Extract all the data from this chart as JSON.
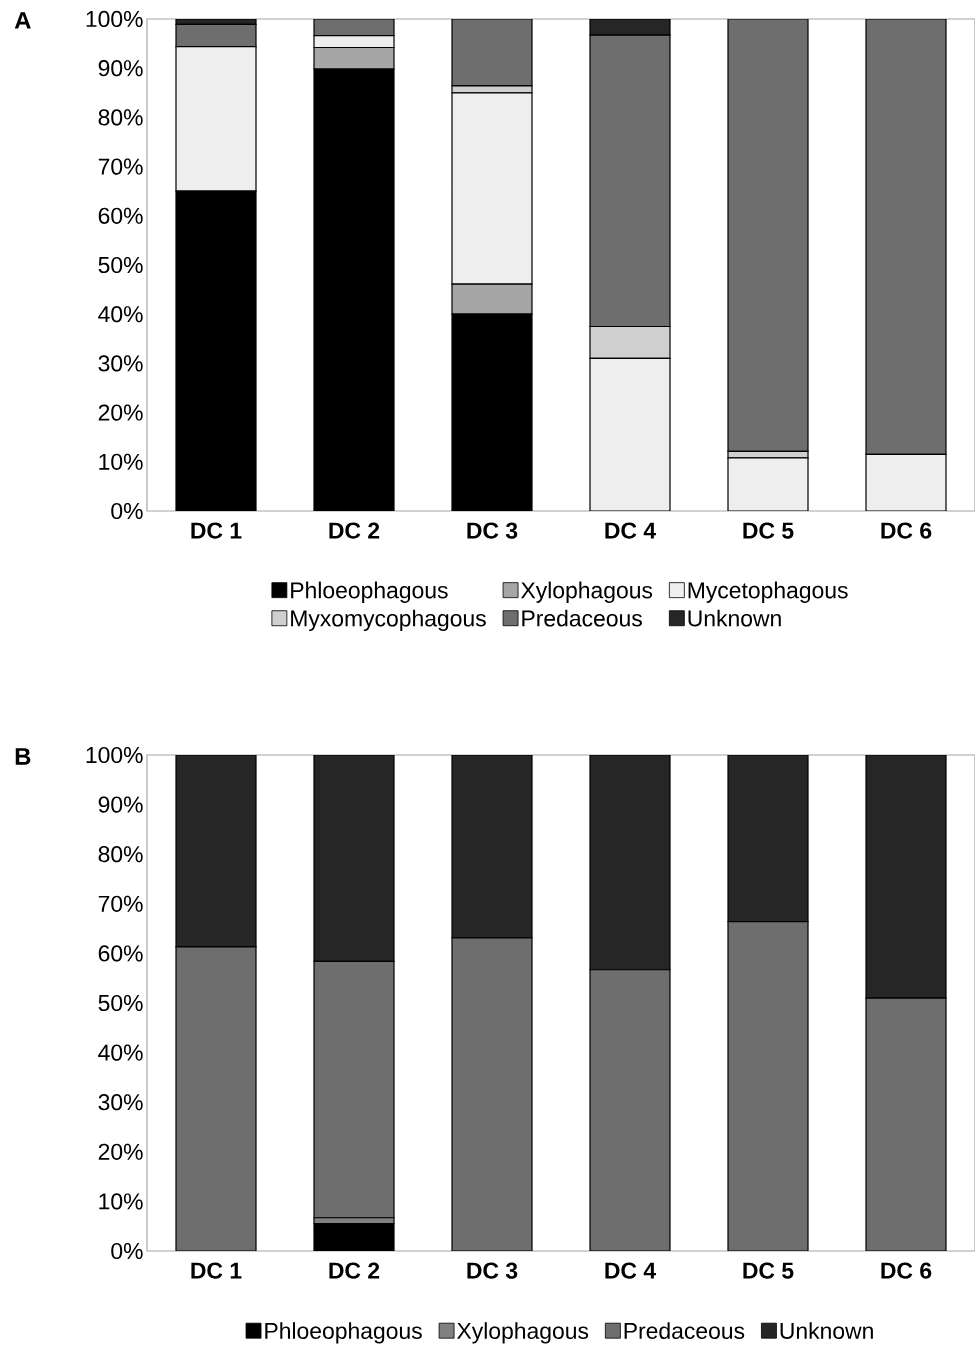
{
  "chart_data": [
    {
      "type": "bar",
      "title": "A",
      "stacked": true,
      "legend": "bottom",
      "grid": false,
      "categories": [
        "DC 1",
        "DC 2",
        "DC 3",
        "DC 4",
        "DC 5",
        "DC 6"
      ],
      "ylim": [
        0,
        100
      ],
      "yticks": [
        {
          "value": 0,
          "label": "0%"
        },
        {
          "value": 10,
          "label": "10%"
        },
        {
          "value": 20,
          "label": "20%"
        },
        {
          "value": 30,
          "label": "30%"
        },
        {
          "value": 40,
          "label": "40%"
        },
        {
          "value": 50,
          "label": "50%"
        },
        {
          "value": 60,
          "label": "60%"
        },
        {
          "value": 70,
          "label": "70%"
        },
        {
          "value": 80,
          "label": "80%"
        },
        {
          "value": 90,
          "label": "90%"
        },
        {
          "value": 100,
          "label": "100%"
        }
      ],
      "series": [
        {
          "name": "Phloeophagous",
          "color": "#000000",
          "values": [
            65.0,
            89.8,
            40.0,
            0,
            0,
            0
          ]
        },
        {
          "name": "Xylophagous",
          "color": "#a6a6a6",
          "values": [
            0,
            4.4,
            6.1,
            0,
            0,
            0
          ]
        },
        {
          "name": "Mycetophagous",
          "color": "#eeeeee",
          "values": [
            29.4,
            2.4,
            38.9,
            31.0,
            10.8,
            11.5
          ]
        },
        {
          "name": "Myxomycophagous",
          "color": "#cfcfcf",
          "values": [
            0,
            0,
            1.4,
            6.5,
            1.3,
            0
          ]
        },
        {
          "name": "Predaceous",
          "color": "#6e6e6e",
          "values": [
            4.5,
            3.4,
            13.6,
            59.2,
            87.9,
            88.5
          ]
        },
        {
          "name": "Unknown",
          "color": "#262626",
          "values": [
            1.1,
            0,
            0,
            3.3,
            0,
            0
          ]
        }
      ]
    },
    {
      "type": "bar",
      "title": "B",
      "stacked": true,
      "legend": "bottom",
      "grid": false,
      "categories": [
        "DC 1",
        "DC 2",
        "DC 3",
        "DC 4",
        "DC 5",
        "DC 6"
      ],
      "ylim": [
        0,
        100
      ],
      "yticks": [
        {
          "value": 0,
          "label": "0%"
        },
        {
          "value": 10,
          "label": "10%"
        },
        {
          "value": 20,
          "label": "20%"
        },
        {
          "value": 30,
          "label": "30%"
        },
        {
          "value": 40,
          "label": "40%"
        },
        {
          "value": 50,
          "label": "50%"
        },
        {
          "value": 60,
          "label": "60%"
        },
        {
          "value": 70,
          "label": "70%"
        },
        {
          "value": 80,
          "label": "80%"
        },
        {
          "value": 90,
          "label": "90%"
        },
        {
          "value": 100,
          "label": "100%"
        }
      ],
      "series": [
        {
          "name": "Phloeophagous",
          "color": "#000000",
          "values": [
            0,
            5.5,
            0,
            0,
            0,
            0
          ]
        },
        {
          "name": "Xylophagous",
          "color": "#808080",
          "values": [
            0,
            1.2,
            0,
            0,
            0,
            0
          ]
        },
        {
          "name": "Predaceous",
          "color": "#6e6e6e",
          "values": [
            61.3,
            51.7,
            63.1,
            56.7,
            66.4,
            51.0
          ]
        },
        {
          "name": "Unknown",
          "color": "#262626",
          "values": [
            38.7,
            41.6,
            36.9,
            43.3,
            33.6,
            49.0
          ]
        }
      ]
    }
  ]
}
